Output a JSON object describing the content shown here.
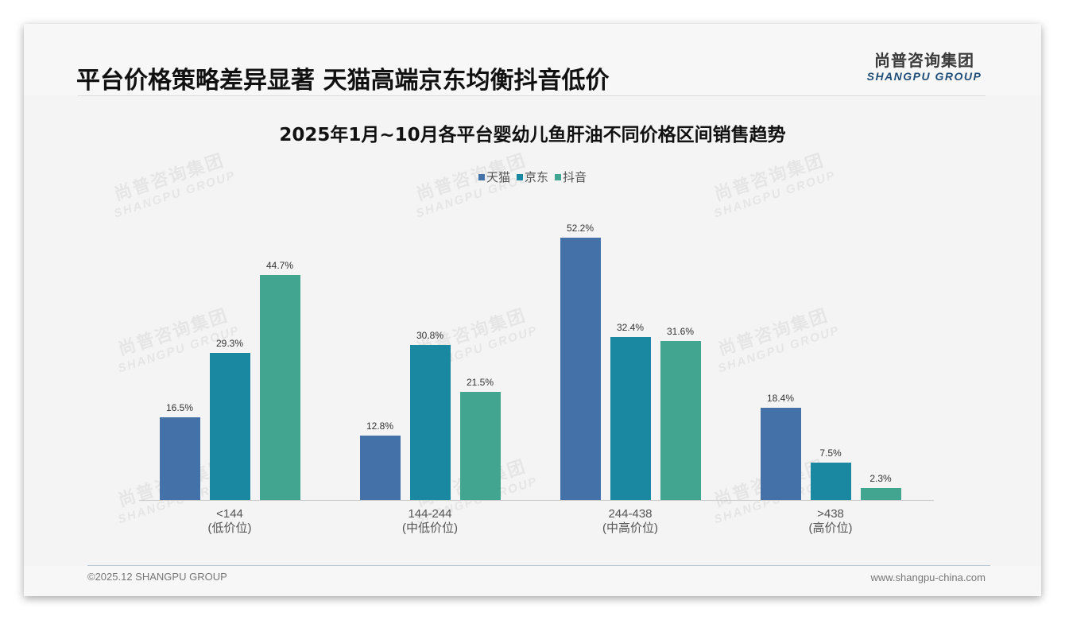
{
  "header": {
    "title": "平台价格策略差异显著 天猫高端京东均衡抖音低价",
    "logo_cn": "尚普咨询集团",
    "logo_en": "SHANGPU GROUP"
  },
  "watermark": {
    "cn": "尚普咨询集团",
    "en": "SHANGPU GROUP"
  },
  "footer": {
    "copyright": "©2025.12 SHANGPU GROUP",
    "website": "www.shangpu-china.com"
  },
  "colors": {
    "tmall": "#4472a8",
    "jd": "#1a88a0",
    "douyin": "#42a590"
  },
  "chart_data": {
    "type": "bar",
    "title": "2025年1月~10月各平台婴幼儿鱼肝油不同价格区间销售趋势",
    "xlabel": "",
    "ylabel": "",
    "ylim": [
      0,
      60
    ],
    "grid": false,
    "legend_position": "top",
    "categories": [
      "<144 (低价位)",
      "144-244 (中低价位)",
      "244-438 (中高价位)",
      ">438 (高价位)"
    ],
    "category_labels": [
      {
        "range": "<144",
        "tier": "(低价位)"
      },
      {
        "range": "144-244",
        "tier": "(中低价位)"
      },
      {
        "range": "244-438",
        "tier": "(中高价位)"
      },
      {
        "range": ">438",
        "tier": "(高价位)"
      }
    ],
    "series": [
      {
        "name": "天猫",
        "values": [
          16.5,
          12.8,
          52.2,
          18.4
        ],
        "labels": [
          "16.5%",
          "12.8%",
          "52.2%",
          "18.4%"
        ]
      },
      {
        "name": "京东",
        "values": [
          29.3,
          30.8,
          32.4,
          7.5
        ],
        "labels": [
          "29.3%",
          "30.8%",
          "32.4%",
          "7.5%"
        ]
      },
      {
        "name": "抖音",
        "values": [
          44.7,
          21.5,
          31.6,
          2.3
        ],
        "labels": [
          "44.7%",
          "21.5%",
          "31.6%",
          "2.3%"
        ]
      }
    ]
  }
}
